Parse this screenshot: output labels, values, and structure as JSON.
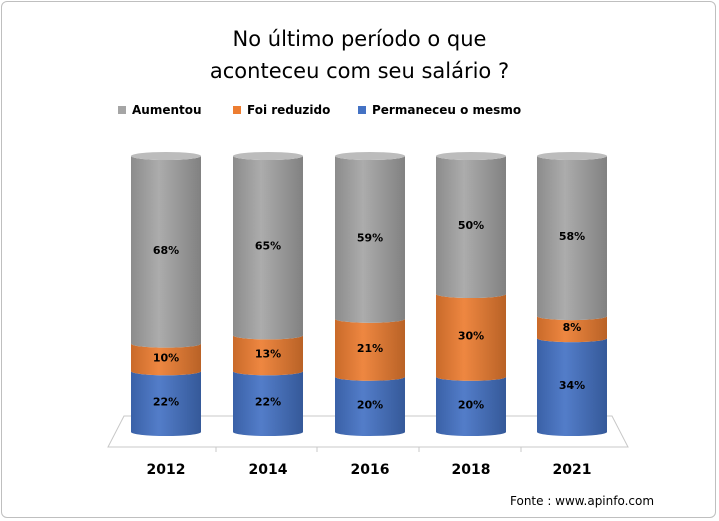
{
  "title_lines": [
    "No último período o que",
    "aconteceu com seu salário ?"
  ],
  "source": "Fonte : www.apinfo.com",
  "chart_data": {
    "type": "bar",
    "stacked": true,
    "style": "3d-cylinder",
    "categories": [
      "2012",
      "2014",
      "2016",
      "2018",
      "2021"
    ],
    "series": [
      {
        "name": "Permaneceu o mesmo",
        "color": "#4472C4",
        "values": [
          22,
          22,
          20,
          20,
          34
        ],
        "labels": [
          "22%",
          "22%",
          "20%",
          "20%",
          "34%"
        ]
      },
      {
        "name": "Foi reduzido",
        "color": "#ED7D31",
        "values": [
          10,
          13,
          21,
          30,
          8
        ],
        "labels": [
          "10%",
          "13%",
          "21%",
          "30%",
          "8%"
        ]
      },
      {
        "name": "Aumentou",
        "color": "#A5A5A5",
        "values": [
          68,
          65,
          59,
          50,
          58
        ],
        "labels": [
          "68%",
          "65%",
          "59%",
          "50%",
          "58%"
        ]
      }
    ],
    "legend_order": [
      "Aumentou",
      "Foi reduzido",
      "Permaneceu o mesmo"
    ],
    "legend_position": "top",
    "ylim": [
      0,
      100
    ],
    "grid": false
  }
}
